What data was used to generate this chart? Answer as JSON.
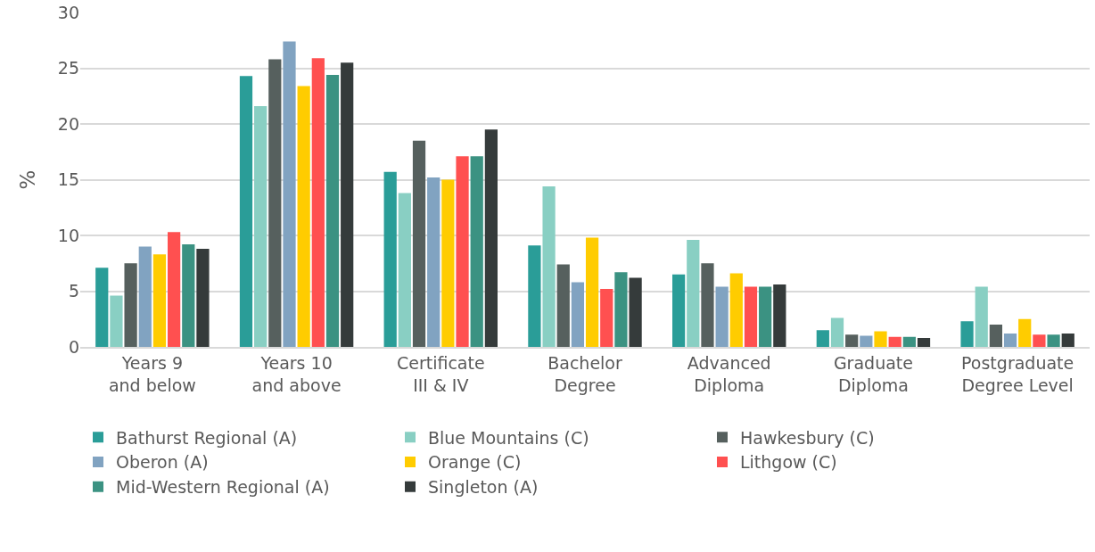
{
  "chart_data": {
    "type": "bar",
    "ylabel": "%",
    "categories": [
      "Years 9 and below",
      "Years 10 and above",
      "Certificate III & IV",
      "Bachelor Degree",
      "Advanced Diploma",
      "Graduate Diploma",
      "Postgraduate Degree Level"
    ],
    "ylim": [
      0,
      30
    ],
    "yticks": [
      0,
      5,
      10,
      15,
      20,
      25,
      30
    ],
    "grid": "y",
    "legend": "bottom",
    "series": [
      {
        "name": "Bathurst Regional (A)",
        "color": "#2a9d98",
        "values": [
          7.1,
          24.3,
          15.7,
          9.1,
          6.5,
          1.5,
          2.3
        ]
      },
      {
        "name": "Blue Mountains (C)",
        "color": "#89cfc3",
        "values": [
          4.6,
          21.6,
          13.8,
          14.4,
          9.6,
          2.6,
          5.4
        ]
      },
      {
        "name": "Hawkesbury (C)",
        "color": "#56605e",
        "values": [
          7.5,
          25.8,
          18.5,
          7.4,
          7.5,
          1.1,
          2.0
        ]
      },
      {
        "name": "Oberon (A)",
        "color": "#81a3c1",
        "values": [
          9.0,
          27.4,
          15.2,
          5.8,
          5.4,
          1.0,
          1.2
        ]
      },
      {
        "name": "Orange (C)",
        "color": "#ffcc00",
        "values": [
          8.3,
          23.4,
          15.0,
          9.8,
          6.6,
          1.4,
          2.5
        ]
      },
      {
        "name": "Lithgow (C)",
        "color": "#ff5050",
        "values": [
          10.3,
          25.9,
          17.1,
          5.2,
          5.4,
          0.9,
          1.1
        ]
      },
      {
        "name": "Mid-Western Regional (A)",
        "color": "#3b9282",
        "values": [
          9.2,
          24.4,
          17.1,
          6.7,
          5.4,
          0.9,
          1.1
        ]
      },
      {
        "name": "Singleton (A)",
        "color": "#353b3b",
        "values": [
          8.8,
          25.5,
          19.5,
          6.2,
          5.6,
          0.8,
          1.2
        ]
      }
    ]
  }
}
